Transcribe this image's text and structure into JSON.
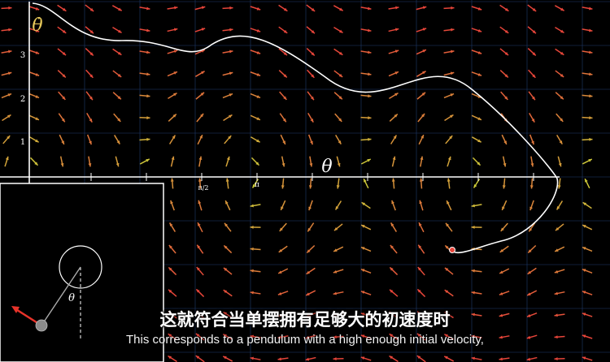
{
  "axes": {
    "y_label": "θ̇",
    "x_label": "θ",
    "y_ticks": [
      "1",
      "2",
      "3"
    ],
    "x_ticks": [
      "π/2",
      "π"
    ]
  },
  "inset": {
    "angle_label": "θ"
  },
  "colors": {
    "background": "#000000",
    "grid": "#1f3d6e",
    "axes": "#ffffff",
    "trajectory": "#ffffff",
    "vector_slow": "#c9d63a",
    "vector_fast": "#e8453a",
    "velocity_arrow": "#e8332a",
    "bob": "#8a8a8a"
  },
  "subtitles": {
    "chinese": "这就符合当单摆拥有足够大的初速度时",
    "english": "This corresponds to a pendulum with a high enough initial velocity,"
  }
}
